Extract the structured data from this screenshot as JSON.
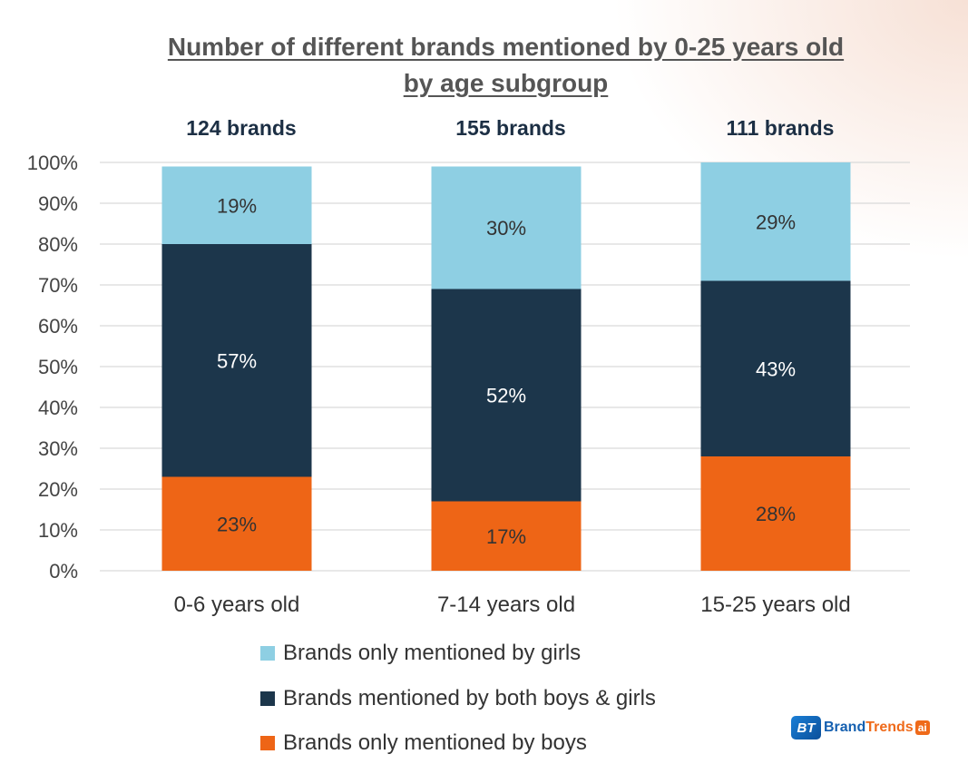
{
  "chart_data": {
    "type": "stacked-bar-100",
    "title": [
      "Number of different brands mentioned by 0-25 years old",
      "by age subgroup"
    ],
    "categories": [
      "0-6 years old",
      "7-14 years old",
      "15-25 years old"
    ],
    "totals": [
      "124 brands",
      "155 brands",
      "111 brands"
    ],
    "series": [
      {
        "name": "Brands only mentioned by boys",
        "color": "#ee6516",
        "values": [
          23,
          17,
          28
        ],
        "labels": [
          "23%",
          "17%",
          "28%"
        ],
        "label_color": "#333333"
      },
      {
        "name": "Brands mentioned by both boys & girls",
        "color": "#1c364b",
        "values": [
          57,
          52,
          43
        ],
        "labels": [
          "57%",
          "52%",
          "43%"
        ],
        "label_color": "#ffffff"
      },
      {
        "name": "Brands only mentioned by girls",
        "color": "#8ecfe3",
        "values": [
          19,
          30,
          29
        ],
        "labels": [
          "19%",
          "30%",
          "29%"
        ],
        "label_color": "#333333"
      }
    ],
    "y_ticks": [
      "0%",
      "10%",
      "20%",
      "30%",
      "40%",
      "50%",
      "60%",
      "70%",
      "80%",
      "90%",
      "100%"
    ],
    "ylim": [
      0,
      100
    ],
    "grid": true,
    "legend_position": "bottom"
  },
  "legend": [
    {
      "label": "Brands only mentioned by girls",
      "color": "#8ecfe3"
    },
    {
      "label": "Brands mentioned by both boys & girls",
      "color": "#1c364b"
    },
    {
      "label": "Brands only mentioned by boys",
      "color": "#ee6516"
    }
  ],
  "logo": {
    "mark": "BT",
    "brand": "Brand",
    "trends": "Trends",
    "ai": "ai"
  }
}
